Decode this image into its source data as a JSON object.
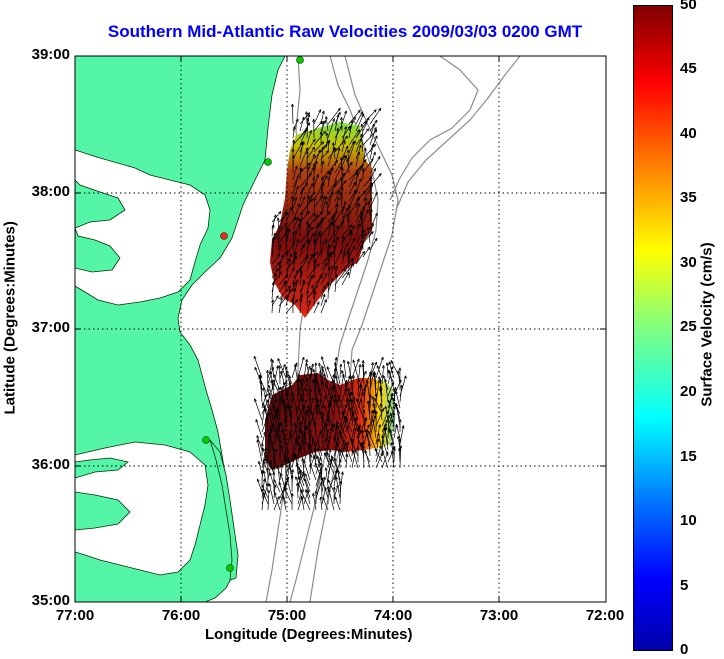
{
  "title": "Southern Mid-Atlantic Raw Velocities 2009/03/03 0200 GMT",
  "x_axis": {
    "label": "Longitude (Degrees:Minutes)",
    "ticks": [
      "77:00",
      "76:00",
      "75:00",
      "74:00",
      "73:00",
      "72:00"
    ]
  },
  "y_axis": {
    "label": "Latitude (Degrees:Minutes)",
    "ticks": [
      "39:00",
      "38:00",
      "37:00",
      "36:00",
      "35:00"
    ]
  },
  "colorbar": {
    "label": "Surface Velocity (cm/s)",
    "ticks": [
      "50",
      "45",
      "40",
      "35",
      "30",
      "25",
      "20",
      "15",
      "10",
      "5",
      "0"
    ],
    "range": [
      0,
      50
    ],
    "colormap": "jet"
  },
  "map": {
    "lon_range": [
      -77,
      -72
    ],
    "lat_range": [
      35,
      39
    ],
    "grid": true,
    "land_color": "#55f5a8",
    "bathymetry_color": "#8c8c8c",
    "station_color": "#00cc00",
    "velocity_fields": [
      "northern field (Delmarva coast)",
      "southern field (Virginia/North Carolina coast)"
    ]
  }
}
